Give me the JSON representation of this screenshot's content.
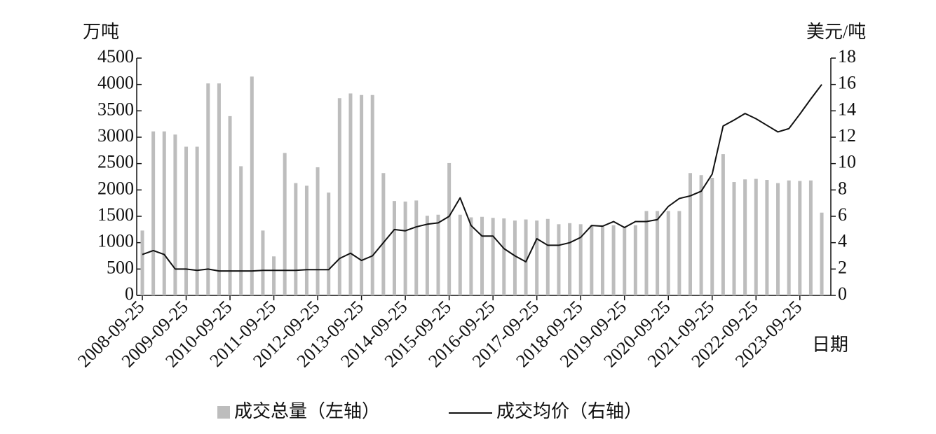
{
  "chart_data": {
    "type": "combo",
    "y_label": "万吨",
    "y2_label": "美元/吨",
    "x_label": "日期",
    "categories": [
      "2008-09-25",
      null,
      null,
      null,
      "2009-09-25",
      null,
      null,
      null,
      "2010-09-25",
      null,
      null,
      null,
      "2011-09-25",
      null,
      null,
      null,
      "2012-09-25",
      null,
      null,
      null,
      "2013-09-25",
      null,
      null,
      null,
      "2014-09-25",
      null,
      null,
      null,
      "2015-09-25",
      null,
      null,
      null,
      "2016-09-25",
      null,
      null,
      null,
      "2017-09-25",
      null,
      null,
      null,
      "2018-09-25",
      null,
      null,
      null,
      "2019-09-25",
      null,
      null,
      null,
      "2020-09-25",
      null,
      null,
      null,
      "2021-09-25",
      null,
      null,
      null,
      "2022-09-25",
      null,
      null,
      null,
      "2023-09-25",
      null,
      null
    ],
    "series": [
      {
        "name": "成交总量（左轴）",
        "type": "bar",
        "color": "#bdbdbd",
        "values": [
          1230,
          3110,
          3110,
          3050,
          2820,
          2820,
          4020,
          4020,
          3400,
          2450,
          4150,
          1230,
          740,
          2700,
          2130,
          2080,
          2430,
          1950,
          3740,
          3830,
          3800,
          3800,
          2320,
          1790,
          1780,
          1800,
          1510,
          1530,
          2510,
          1530,
          1480,
          1490,
          1470,
          1460,
          1420,
          1440,
          1420,
          1450,
          1350,
          1370,
          1350,
          1330,
          1330,
          1330,
          1310,
          1330,
          1600,
          1600,
          1600,
          1600,
          2320,
          2280,
          2230,
          2680,
          2150,
          2200,
          2210,
          2190,
          2130,
          2180,
          2170,
          2180,
          1570
        ]
      },
      {
        "name": "成交均价（右轴）",
        "type": "line",
        "color": "#111111",
        "axis": "y2",
        "values": [
          3.1,
          3.4,
          3.1,
          2.0,
          2.0,
          1.9,
          2.0,
          1.85,
          1.85,
          1.85,
          1.85,
          1.9,
          1.9,
          1.9,
          1.9,
          1.95,
          1.95,
          1.95,
          2.8,
          3.2,
          2.65,
          3.0,
          4.0,
          5.0,
          4.9,
          5.2,
          5.4,
          5.5,
          6.0,
          7.4,
          5.3,
          4.5,
          4.5,
          3.55,
          3.0,
          2.55,
          4.3,
          3.8,
          3.8,
          4.0,
          4.4,
          5.3,
          5.25,
          5.6,
          5.15,
          5.6,
          5.6,
          5.75,
          6.75,
          7.35,
          7.55,
          7.9,
          9.2,
          12.85,
          13.3,
          13.8,
          13.4,
          12.9,
          12.4,
          12.65,
          13.75,
          14.9,
          16.0
        ]
      }
    ],
    "ylim": [
      0,
      4500
    ],
    "yticks": [
      0,
      500,
      1000,
      1500,
      2000,
      2500,
      3000,
      3500,
      4000,
      4500
    ],
    "y2lim": [
      0,
      18
    ],
    "y2ticks": [
      0,
      2,
      4,
      6,
      8,
      10,
      12,
      14,
      16,
      18
    ]
  }
}
